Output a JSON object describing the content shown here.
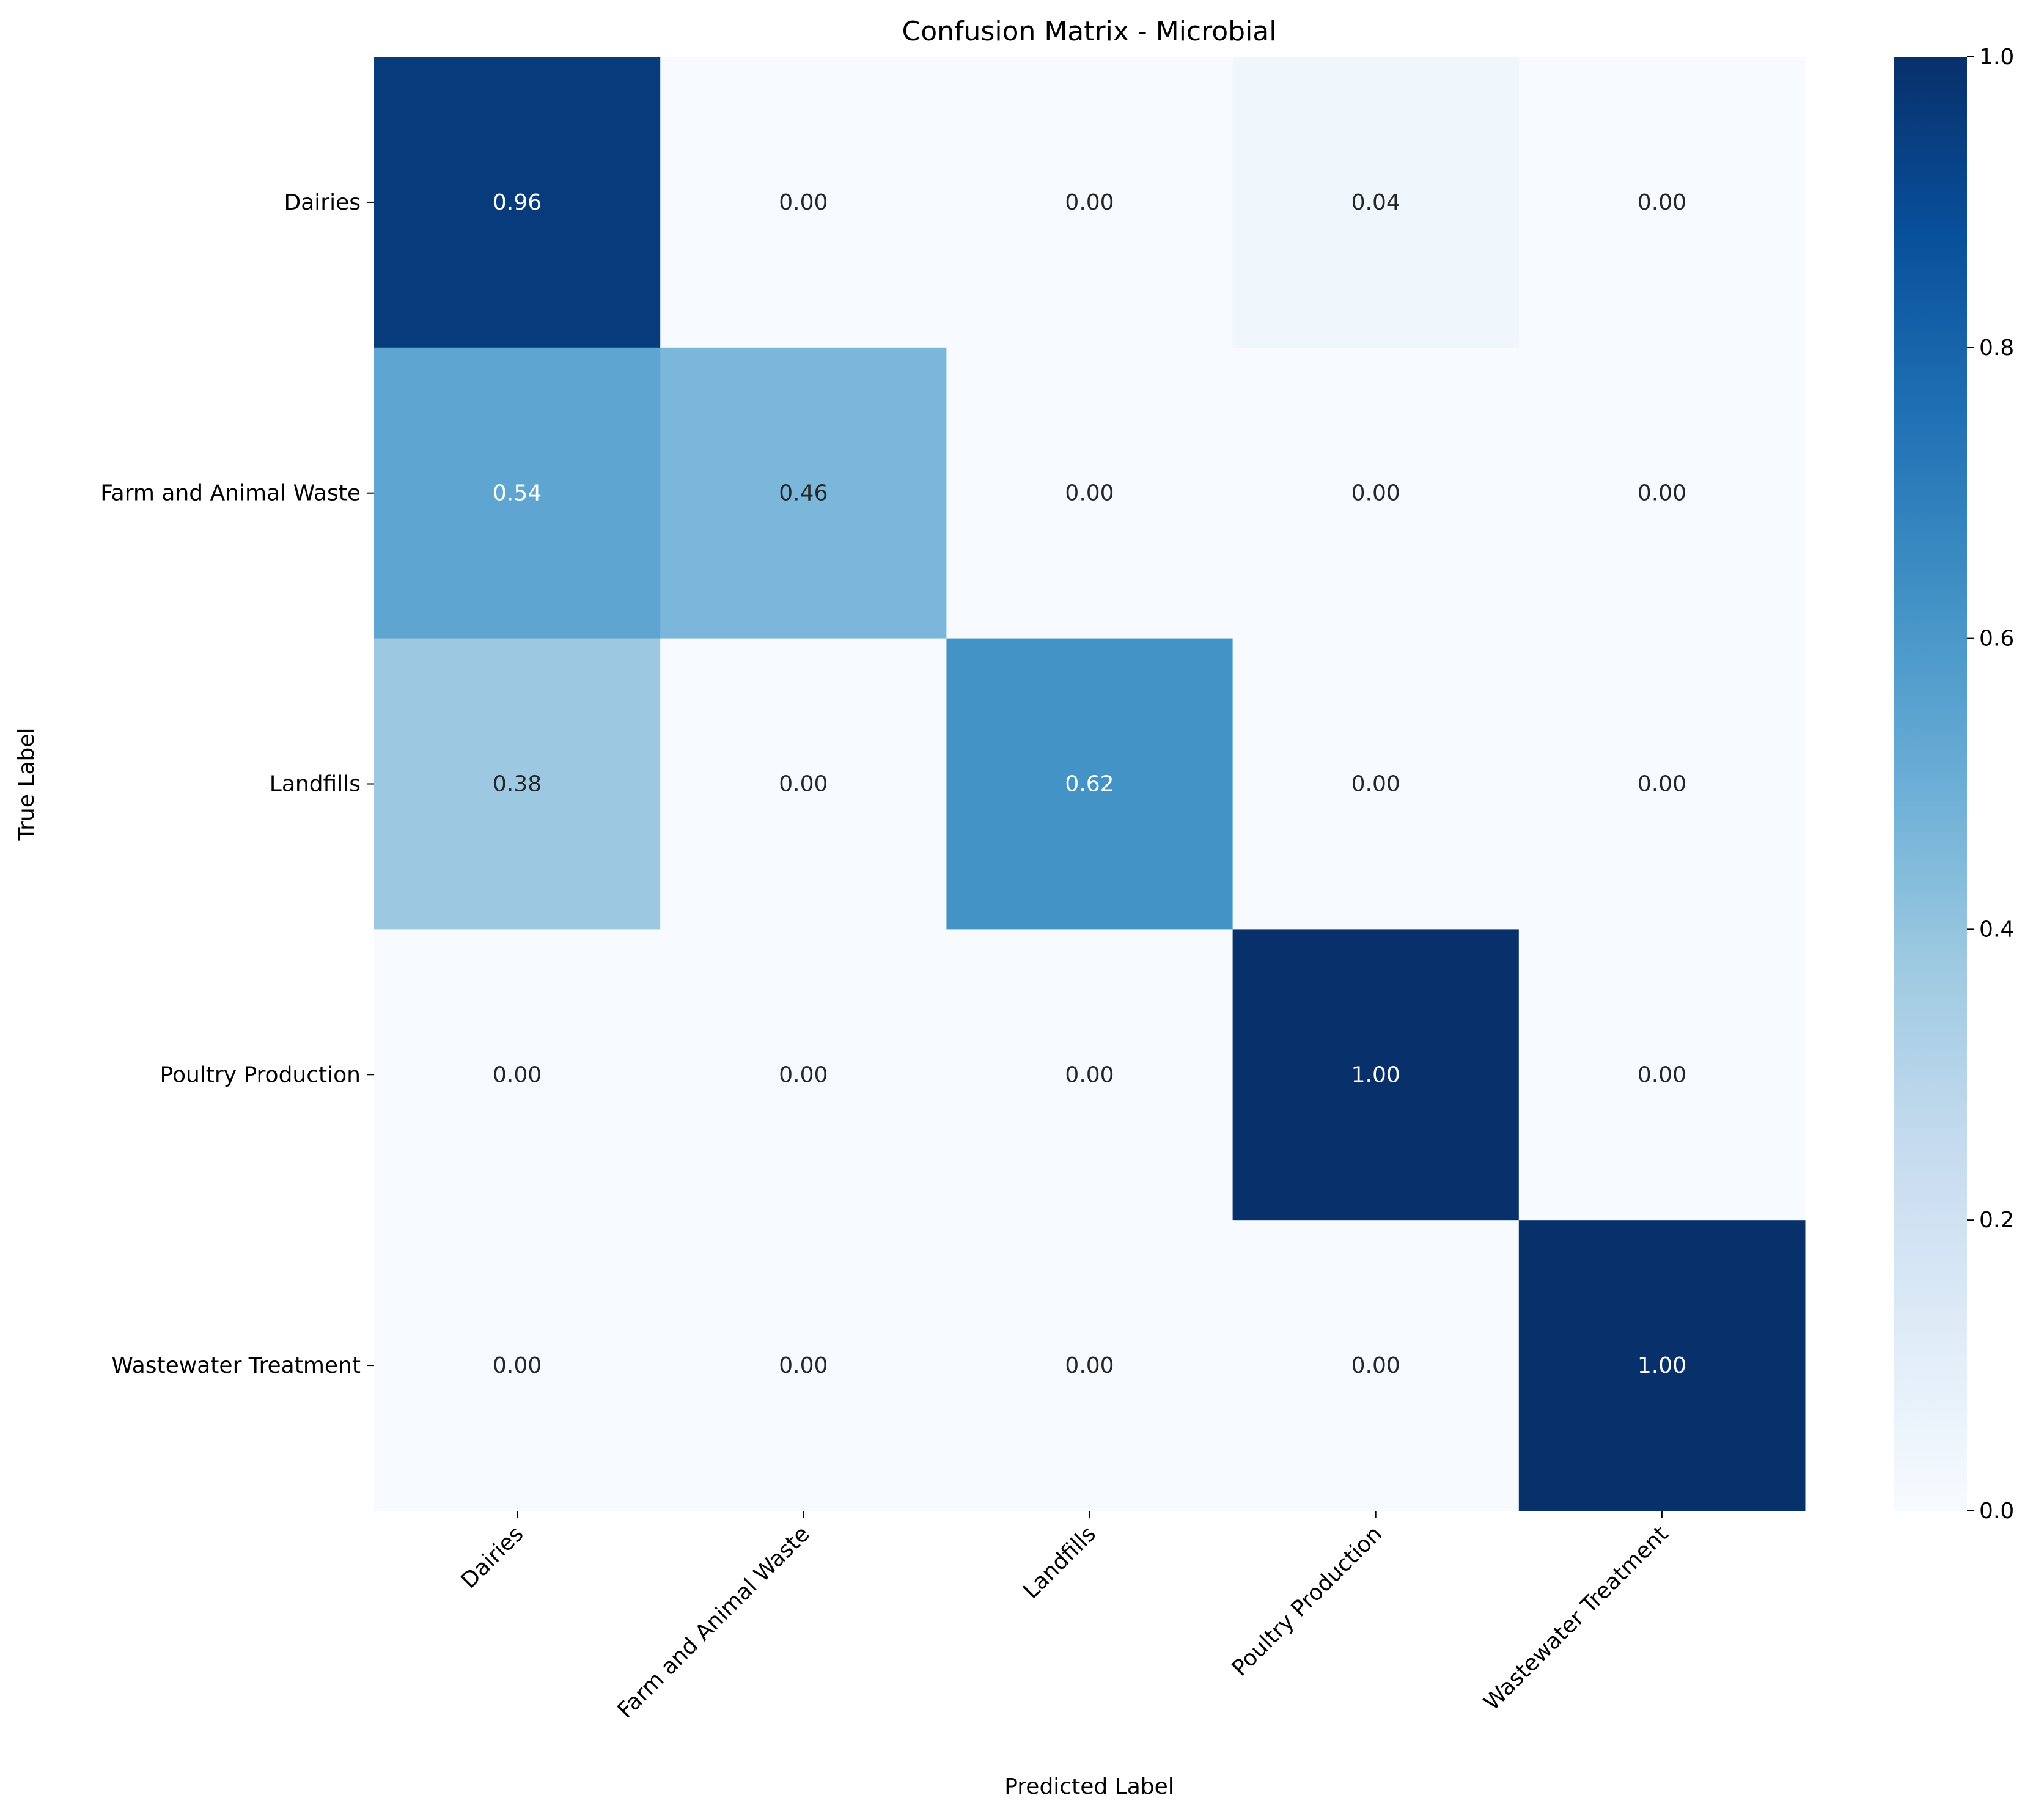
{
  "chart_data": {
    "type": "heatmap",
    "title": "Confusion Matrix - Microbial",
    "xlabel": "Predicted Label",
    "ylabel": "True Label",
    "x_categories": [
      "Dairies",
      "Farm and Animal Waste",
      "Landfills",
      "Poultry Production",
      "Wastewater Treatment"
    ],
    "y_categories": [
      "Dairies",
      "Farm and Animal Waste",
      "Landfills",
      "Poultry Production",
      "Wastewater Treatment"
    ],
    "values": [
      [
        0.96,
        0.0,
        0.0,
        0.04,
        0.0
      ],
      [
        0.54,
        0.46,
        0.0,
        0.0,
        0.0
      ],
      [
        0.38,
        0.0,
        0.62,
        0.0,
        0.0
      ],
      [
        0.0,
        0.0,
        0.0,
        1.0,
        0.0
      ],
      [
        0.0,
        0.0,
        0.0,
        0.0,
        1.0
      ]
    ],
    "value_format": "0.00",
    "colormap": "Blues",
    "colormap_stops": [
      "#f7fbff",
      "#deebf7",
      "#c6dbef",
      "#9ecae1",
      "#6baed6",
      "#4292c6",
      "#2171b5",
      "#08519c",
      "#08306b"
    ],
    "vmin": 0.0,
    "vmax": 1.0,
    "colorbar_ticks": [
      "0.0",
      "0.2",
      "0.4",
      "0.6",
      "0.8",
      "1.0"
    ],
    "colorbar_placement": "right",
    "grid": false
  }
}
